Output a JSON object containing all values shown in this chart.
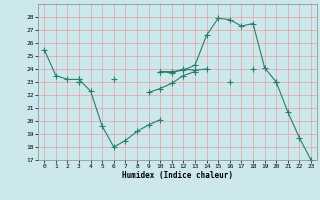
{
  "x_values": [
    0,
    1,
    2,
    3,
    4,
    5,
    6,
    7,
    8,
    9,
    10,
    11,
    12,
    13,
    14,
    15,
    16,
    17,
    18,
    19,
    20,
    21,
    22,
    23
  ],
  "line1": [
    25.5,
    23.5,
    23.2,
    23.2,
    null,
    null,
    null,
    null,
    null,
    null,
    null,
    null,
    null,
    null,
    null,
    null,
    null,
    null,
    null,
    null,
    null,
    null,
    null,
    null
  ],
  "line2": [
    null,
    null,
    null,
    23.2,
    22.3,
    19.6,
    18.0,
    18.5,
    19.2,
    19.7,
    20.1,
    null,
    null,
    null,
    null,
    null,
    null,
    null,
    null,
    null,
    null,
    null,
    null,
    null
  ],
  "line3": [
    null,
    null,
    null,
    23.0,
    null,
    null,
    23.2,
    null,
    null,
    22.2,
    22.5,
    22.9,
    23.5,
    23.8,
    null,
    null,
    null,
    null,
    null,
    null,
    null,
    null,
    null,
    null
  ],
  "line4": [
    null,
    null,
    null,
    23.0,
    null,
    null,
    null,
    null,
    null,
    null,
    23.8,
    23.8,
    23.9,
    24.3,
    26.6,
    27.9,
    27.8,
    27.3,
    27.5,
    24.1,
    23.0,
    20.7,
    18.7,
    17.0
  ],
  "line5": [
    null,
    null,
    null,
    null,
    null,
    null,
    null,
    null,
    null,
    null,
    23.8,
    23.7,
    24.0,
    23.9,
    24.0,
    null,
    23.0,
    null,
    24.0,
    null,
    23.0,
    null,
    null,
    null
  ],
  "xlabel": "Humidex (Indice chaleur)",
  "xlim": [
    -0.5,
    23.5
  ],
  "ylim": [
    17,
    29
  ],
  "ytick_min": 17,
  "ytick_max": 28,
  "line_color": "#2a7d6b",
  "bg_color": "#cde8ec",
  "grid_color": "#e8a0a0",
  "xlabel_fontsize": 5.5
}
